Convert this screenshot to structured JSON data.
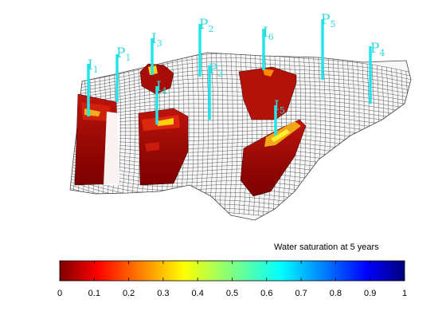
{
  "figure": {
    "colorbar_title": "Water saturation at 5 years",
    "colorbar_ticks": [
      "0",
      "0.1",
      "0.2",
      "0.3",
      "0.4",
      "0.5",
      "0.6",
      "0.7",
      "0.8",
      "0.9",
      "1"
    ],
    "colormap": "jet",
    "colors": {
      "well": "#20e6ec",
      "well_label": "#2fd8dc",
      "grid": "#555555",
      "saturation_low": "#8b0000",
      "saturation_mid": "#e01a00",
      "saturation_high": "#ffd200"
    },
    "wells": [
      {
        "letter": "I",
        "sub": "1"
      },
      {
        "letter": "P",
        "sub": "1"
      },
      {
        "letter": "I",
        "sub": "3"
      },
      {
        "letter": "I",
        "sub": "4"
      },
      {
        "letter": "P",
        "sub": "2"
      },
      {
        "letter": "P",
        "sub": "3"
      },
      {
        "letter": "I",
        "sub": "6"
      },
      {
        "letter": "I",
        "sub": "5"
      },
      {
        "letter": "P",
        "sub": "5"
      },
      {
        "letter": "P",
        "sub": "4"
      }
    ]
  }
}
